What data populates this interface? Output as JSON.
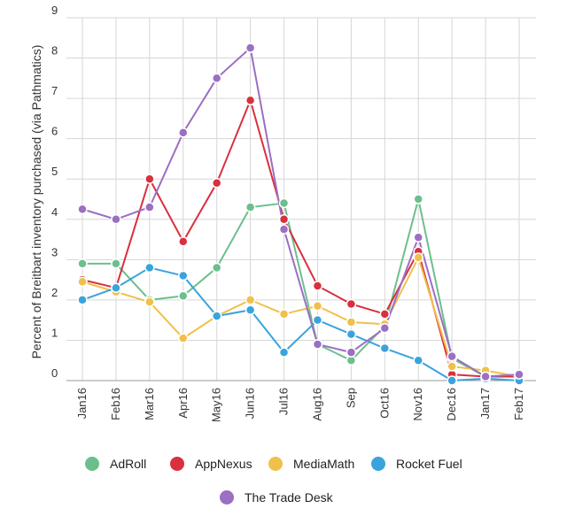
{
  "chart_data": {
    "type": "line",
    "ylabel": "Percent of Breitbart inventory purchased (via Pathmatics)",
    "xlabel": "",
    "categories": [
      "Jan16",
      "Feb16",
      "Mar16",
      "Apr16",
      "May16",
      "Jun16",
      "Jul16",
      "Aug16",
      "Sep",
      "Oct16",
      "Nov16",
      "Dec16",
      "Jan17",
      "Feb17"
    ],
    "ylim": [
      0,
      9
    ],
    "yticks": [
      "0",
      "1",
      "2",
      "3",
      "4",
      "5",
      "6",
      "7",
      "8",
      "9"
    ],
    "grid": true,
    "legend_position": "bottom",
    "series": [
      {
        "name": "AdRoll",
        "color": "#6cbf8c",
        "values": [
          2.9,
          2.9,
          2.0,
          2.1,
          2.8,
          4.3,
          4.4,
          0.9,
          0.5,
          1.35,
          4.5,
          0.55,
          0.1,
          0.15
        ]
      },
      {
        "name": "AppNexus",
        "color": "#d9303e",
        "values": [
          2.5,
          2.3,
          5.0,
          3.45,
          4.9,
          6.95,
          4.0,
          2.35,
          1.9,
          1.65,
          3.2,
          0.15,
          0.1,
          0.1
        ]
      },
      {
        "name": "MediaMath",
        "color": "#f0c04a",
        "values": [
          2.45,
          2.2,
          1.95,
          1.05,
          1.6,
          2.0,
          1.65,
          1.85,
          1.45,
          1.4,
          3.05,
          0.35,
          0.25,
          0.1
        ]
      },
      {
        "name": "Rocket Fuel",
        "color": "#3aa3dc",
        "values": [
          2.0,
          2.3,
          2.8,
          2.6,
          1.6,
          1.75,
          0.7,
          1.5,
          1.15,
          0.8,
          0.5,
          0.0,
          0.05,
          0.0
        ]
      },
      {
        "name": "The Trade Desk",
        "color": "#9b6fc2",
        "values": [
          4.25,
          4.0,
          4.3,
          6.15,
          7.5,
          8.25,
          3.75,
          0.9,
          0.7,
          1.3,
          3.55,
          0.6,
          0.1,
          0.15
        ]
      }
    ]
  }
}
